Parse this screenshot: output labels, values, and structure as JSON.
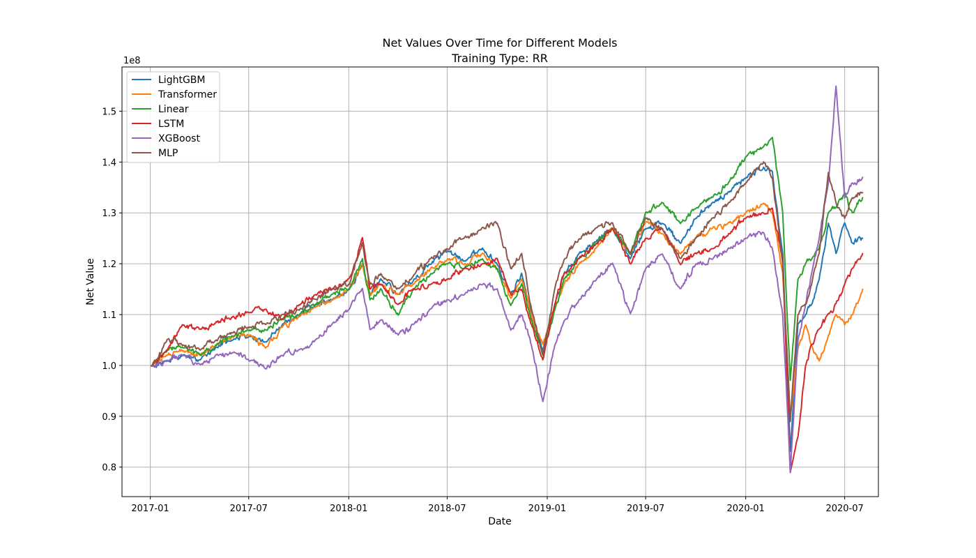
{
  "chart_data": {
    "type": "line",
    "title": "Net Values Over Time for Different Models",
    "subtitle": "Training Type: RR",
    "xlabel": "Date",
    "ylabel": "Net Value",
    "y_offset_label": "1e8",
    "xlim": [
      "2016-11-10",
      "2020-09-01"
    ],
    "ylim": [
      0.742,
      1.587
    ],
    "x_ticks": [
      "2017-01",
      "2017-07",
      "2018-01",
      "2018-07",
      "2019-01",
      "2019-07",
      "2020-01",
      "2020-07"
    ],
    "y_ticks": [
      0.8,
      0.9,
      1.0,
      1.1,
      1.2,
      1.3,
      1.4,
      1.5
    ],
    "y_tick_labels": [
      "0.8",
      "0.9",
      "1.0",
      "1.1",
      "1.2",
      "1.3",
      "1.4",
      "1.5"
    ],
    "grid": true,
    "legend_position": "top-left",
    "series": [
      {
        "name": "LightGBM",
        "color": "#1f77b4",
        "x": [
          "2017-01-03",
          "2017-02-01",
          "2017-03-01",
          "2017-04-03",
          "2017-05-01",
          "2017-06-01",
          "2017-07-03",
          "2017-08-01",
          "2017-09-01",
          "2017-10-02",
          "2017-11-01",
          "2017-12-01",
          "2018-01-02",
          "2018-01-26",
          "2018-02-09",
          "2018-03-01",
          "2018-04-02",
          "2018-05-01",
          "2018-06-01",
          "2018-07-02",
          "2018-08-01",
          "2018-09-04",
          "2018-10-01",
          "2018-10-26",
          "2018-11-15",
          "2018-12-03",
          "2018-12-24",
          "2019-01-15",
          "2019-02-01",
          "2019-03-01",
          "2019-04-01",
          "2019-05-01",
          "2019-06-03",
          "2019-07-01",
          "2019-08-01",
          "2019-09-03",
          "2019-10-01",
          "2019-11-01",
          "2019-12-02",
          "2020-01-02",
          "2020-02-03",
          "2020-02-19",
          "2020-03-09",
          "2020-03-23",
          "2020-04-06",
          "2020-04-20",
          "2020-05-01",
          "2020-05-15",
          "2020-06-01",
          "2020-06-15",
          "2020-07-01",
          "2020-07-15",
          "2020-08-03"
        ],
        "y": [
          1.0,
          1.01,
          1.02,
          1.01,
          1.035,
          1.05,
          1.06,
          1.045,
          1.08,
          1.1,
          1.12,
          1.13,
          1.15,
          1.2,
          1.14,
          1.17,
          1.14,
          1.17,
          1.2,
          1.225,
          1.205,
          1.23,
          1.2,
          1.14,
          1.18,
          1.1,
          1.03,
          1.12,
          1.18,
          1.22,
          1.245,
          1.27,
          1.21,
          1.27,
          1.28,
          1.24,
          1.29,
          1.32,
          1.34,
          1.37,
          1.39,
          1.38,
          1.22,
          0.83,
          1.08,
          1.1,
          1.12,
          1.17,
          1.28,
          1.22,
          1.28,
          1.24,
          1.25
        ]
      },
      {
        "name": "Transformer",
        "color": "#ff7f0e",
        "x": [
          "2017-01-03",
          "2017-02-01",
          "2017-03-01",
          "2017-04-03",
          "2017-05-01",
          "2017-06-01",
          "2017-07-03",
          "2017-08-01",
          "2017-09-01",
          "2017-10-02",
          "2017-11-01",
          "2017-12-01",
          "2018-01-02",
          "2018-01-26",
          "2018-02-09",
          "2018-03-01",
          "2018-04-02",
          "2018-05-01",
          "2018-06-01",
          "2018-07-02",
          "2018-08-01",
          "2018-09-04",
          "2018-10-01",
          "2018-10-26",
          "2018-11-15",
          "2018-12-03",
          "2018-12-24",
          "2019-01-15",
          "2019-02-01",
          "2019-03-01",
          "2019-04-01",
          "2019-05-01",
          "2019-06-03",
          "2019-07-01",
          "2019-08-01",
          "2019-09-03",
          "2019-10-01",
          "2019-11-01",
          "2019-12-02",
          "2020-01-02",
          "2020-02-03",
          "2020-02-19",
          "2020-03-09",
          "2020-03-23",
          "2020-04-06",
          "2020-04-20",
          "2020-05-01",
          "2020-05-15",
          "2020-06-01",
          "2020-06-15",
          "2020-07-01",
          "2020-07-15",
          "2020-08-03"
        ],
        "y": [
          1.0,
          1.02,
          1.03,
          1.02,
          1.04,
          1.055,
          1.06,
          1.035,
          1.075,
          1.095,
          1.115,
          1.13,
          1.15,
          1.2,
          1.14,
          1.16,
          1.14,
          1.16,
          1.19,
          1.21,
          1.2,
          1.22,
          1.19,
          1.13,
          1.17,
          1.1,
          1.04,
          1.11,
          1.16,
          1.2,
          1.23,
          1.27,
          1.22,
          1.28,
          1.26,
          1.22,
          1.25,
          1.27,
          1.28,
          1.3,
          1.32,
          1.3,
          1.18,
          0.9,
          1.03,
          1.08,
          1.04,
          1.01,
          1.06,
          1.1,
          1.08,
          1.1,
          1.15
        ]
      },
      {
        "name": "Linear",
        "color": "#2ca02c",
        "x": [
          "2017-01-03",
          "2017-02-01",
          "2017-03-01",
          "2017-04-03",
          "2017-05-01",
          "2017-06-01",
          "2017-07-03",
          "2017-08-01",
          "2017-09-01",
          "2017-10-02",
          "2017-11-01",
          "2017-12-01",
          "2018-01-02",
          "2018-01-26",
          "2018-02-09",
          "2018-03-01",
          "2018-04-02",
          "2018-05-01",
          "2018-06-01",
          "2018-07-02",
          "2018-08-01",
          "2018-09-04",
          "2018-10-01",
          "2018-10-26",
          "2018-11-15",
          "2018-12-03",
          "2018-12-24",
          "2019-01-15",
          "2019-02-01",
          "2019-03-01",
          "2019-04-01",
          "2019-05-01",
          "2019-06-03",
          "2019-07-01",
          "2019-08-01",
          "2019-09-03",
          "2019-10-01",
          "2019-11-01",
          "2019-12-02",
          "2020-01-02",
          "2020-02-03",
          "2020-02-19",
          "2020-03-09",
          "2020-03-23",
          "2020-04-06",
          "2020-04-20",
          "2020-05-01",
          "2020-05-15",
          "2020-06-01",
          "2020-06-15",
          "2020-07-01",
          "2020-07-15",
          "2020-08-03"
        ],
        "y": [
          1.0,
          1.03,
          1.035,
          1.02,
          1.04,
          1.06,
          1.07,
          1.07,
          1.09,
          1.1,
          1.12,
          1.14,
          1.15,
          1.21,
          1.13,
          1.15,
          1.1,
          1.15,
          1.18,
          1.2,
          1.19,
          1.21,
          1.19,
          1.12,
          1.16,
          1.09,
          1.02,
          1.11,
          1.17,
          1.21,
          1.24,
          1.27,
          1.22,
          1.3,
          1.32,
          1.28,
          1.31,
          1.33,
          1.36,
          1.41,
          1.43,
          1.45,
          1.3,
          0.97,
          1.17,
          1.2,
          1.21,
          1.23,
          1.3,
          1.31,
          1.34,
          1.3,
          1.33
        ]
      },
      {
        "name": "LSTM",
        "color": "#d62728",
        "x": [
          "2017-01-03",
          "2017-02-01",
          "2017-03-01",
          "2017-04-03",
          "2017-05-01",
          "2017-06-01",
          "2017-07-03",
          "2017-08-01",
          "2017-09-01",
          "2017-10-02",
          "2017-11-01",
          "2017-12-01",
          "2018-01-02",
          "2018-01-26",
          "2018-02-09",
          "2018-03-01",
          "2018-04-02",
          "2018-05-01",
          "2018-06-01",
          "2018-07-02",
          "2018-08-01",
          "2018-09-04",
          "2018-10-01",
          "2018-10-26",
          "2018-11-15",
          "2018-12-03",
          "2018-12-24",
          "2019-01-15",
          "2019-02-01",
          "2019-03-01",
          "2019-04-01",
          "2019-05-01",
          "2019-06-03",
          "2019-07-01",
          "2019-08-01",
          "2019-09-03",
          "2019-10-01",
          "2019-11-01",
          "2019-12-02",
          "2020-01-02",
          "2020-02-03",
          "2020-02-19",
          "2020-03-09",
          "2020-03-23",
          "2020-04-06",
          "2020-04-20",
          "2020-05-01",
          "2020-05-15",
          "2020-06-01",
          "2020-06-15",
          "2020-07-01",
          "2020-07-15",
          "2020-08-03"
        ],
        "y": [
          1.0,
          1.03,
          1.08,
          1.07,
          1.085,
          1.095,
          1.105,
          1.11,
          1.09,
          1.12,
          1.14,
          1.15,
          1.17,
          1.25,
          1.15,
          1.16,
          1.12,
          1.15,
          1.16,
          1.17,
          1.19,
          1.2,
          1.21,
          1.14,
          1.15,
          1.08,
          1.01,
          1.12,
          1.18,
          1.21,
          1.24,
          1.27,
          1.2,
          1.25,
          1.27,
          1.2,
          1.22,
          1.23,
          1.26,
          1.29,
          1.3,
          1.31,
          1.21,
          0.79,
          0.86,
          1.0,
          1.04,
          1.07,
          1.1,
          1.12,
          1.16,
          1.19,
          1.22
        ]
      },
      {
        "name": "XGBoost",
        "color": "#9467bd",
        "x": [
          "2017-01-03",
          "2017-02-01",
          "2017-03-01",
          "2017-04-03",
          "2017-05-01",
          "2017-06-01",
          "2017-07-03",
          "2017-08-01",
          "2017-09-01",
          "2017-10-02",
          "2017-11-01",
          "2017-12-01",
          "2018-01-02",
          "2018-01-26",
          "2018-02-09",
          "2018-03-01",
          "2018-04-02",
          "2018-05-01",
          "2018-06-01",
          "2018-07-02",
          "2018-08-01",
          "2018-09-04",
          "2018-10-01",
          "2018-10-26",
          "2018-11-15",
          "2018-12-03",
          "2018-12-24",
          "2019-01-15",
          "2019-02-01",
          "2019-03-01",
          "2019-04-01",
          "2019-05-01",
          "2019-06-03",
          "2019-07-01",
          "2019-08-01",
          "2019-09-03",
          "2019-10-01",
          "2019-11-01",
          "2019-12-02",
          "2020-01-02",
          "2020-02-03",
          "2020-02-19",
          "2020-03-09",
          "2020-03-23",
          "2020-04-06",
          "2020-04-20",
          "2020-05-01",
          "2020-05-15",
          "2020-06-01",
          "2020-06-15",
          "2020-07-01",
          "2020-07-15",
          "2020-08-03"
        ],
        "y": [
          1.0,
          1.01,
          1.02,
          1.0,
          1.02,
          1.025,
          1.01,
          0.995,
          1.02,
          1.03,
          1.05,
          1.08,
          1.11,
          1.15,
          1.07,
          1.09,
          1.06,
          1.08,
          1.11,
          1.13,
          1.14,
          1.16,
          1.15,
          1.07,
          1.1,
          1.04,
          0.93,
          1.04,
          1.09,
          1.13,
          1.17,
          1.2,
          1.1,
          1.19,
          1.22,
          1.15,
          1.2,
          1.21,
          1.23,
          1.25,
          1.26,
          1.23,
          1.1,
          0.79,
          1.05,
          1.12,
          1.18,
          1.25,
          1.36,
          1.55,
          1.33,
          1.36,
          1.37
        ]
      },
      {
        "name": "MLP",
        "color": "#8c564b",
        "x": [
          "2017-01-03",
          "2017-02-01",
          "2017-03-01",
          "2017-04-03",
          "2017-05-01",
          "2017-06-01",
          "2017-07-03",
          "2017-08-01",
          "2017-09-01",
          "2017-10-02",
          "2017-11-01",
          "2017-12-01",
          "2018-01-02",
          "2018-01-26",
          "2018-02-09",
          "2018-03-01",
          "2018-04-02",
          "2018-05-01",
          "2018-06-01",
          "2018-07-02",
          "2018-08-01",
          "2018-09-04",
          "2018-10-01",
          "2018-10-26",
          "2018-11-15",
          "2018-12-03",
          "2018-12-24",
          "2019-01-15",
          "2019-02-01",
          "2019-03-01",
          "2019-04-01",
          "2019-05-01",
          "2019-06-03",
          "2019-07-01",
          "2019-08-01",
          "2019-09-03",
          "2019-10-01",
          "2019-11-01",
          "2019-12-02",
          "2020-01-02",
          "2020-02-03",
          "2020-02-19",
          "2020-03-09",
          "2020-03-23",
          "2020-04-06",
          "2020-04-20",
          "2020-05-01",
          "2020-05-15",
          "2020-06-01",
          "2020-06-15",
          "2020-07-01",
          "2020-07-15",
          "2020-08-03"
        ],
        "y": [
          1.0,
          1.05,
          1.04,
          1.03,
          1.05,
          1.065,
          1.075,
          1.08,
          1.1,
          1.11,
          1.13,
          1.15,
          1.16,
          1.24,
          1.16,
          1.18,
          1.15,
          1.18,
          1.21,
          1.23,
          1.25,
          1.27,
          1.28,
          1.19,
          1.22,
          1.11,
          1.02,
          1.15,
          1.21,
          1.25,
          1.27,
          1.28,
          1.22,
          1.29,
          1.27,
          1.21,
          1.25,
          1.29,
          1.32,
          1.36,
          1.4,
          1.37,
          1.2,
          0.89,
          1.1,
          1.12,
          1.16,
          1.22,
          1.38,
          1.32,
          1.29,
          1.33,
          1.34
        ]
      }
    ]
  }
}
